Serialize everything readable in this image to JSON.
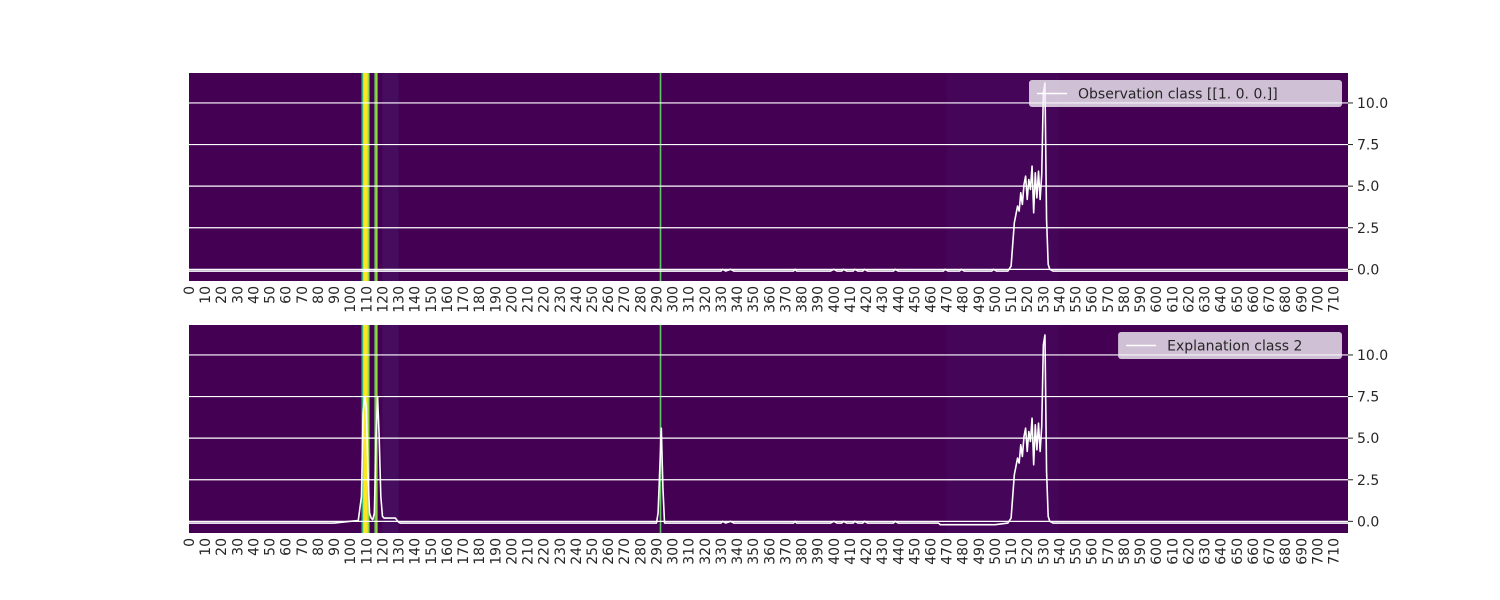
{
  "chart_data": [
    {
      "type": "line",
      "title": "",
      "xlabel": "",
      "ylabel": "",
      "xlim": [
        0,
        719
      ],
      "ylim": [
        -0.7,
        11.8
      ],
      "x_ticks": [
        0,
        10,
        20,
        30,
        40,
        50,
        60,
        70,
        80,
        90,
        100,
        110,
        120,
        130,
        140,
        150,
        160,
        170,
        180,
        190,
        200,
        210,
        220,
        230,
        240,
        250,
        260,
        270,
        280,
        290,
        300,
        310,
        320,
        330,
        340,
        350,
        360,
        370,
        380,
        390,
        400,
        410,
        420,
        430,
        440,
        450,
        460,
        470,
        480,
        490,
        500,
        510,
        520,
        530,
        540,
        550,
        560,
        570,
        580,
        590,
        600,
        610,
        620,
        630,
        640,
        650,
        660,
        670,
        680,
        690,
        700,
        710
      ],
      "y_ticks": [
        0.0,
        2.5,
        5.0,
        7.5,
        10.0
      ],
      "y_tick_labels": [
        "0.0",
        "2.5",
        "5.0",
        "7.5",
        "10.0"
      ],
      "y_axis_side": "right",
      "grid": true,
      "background": "heatmap of explanation relevance (viridis)",
      "legend_position": "top-right",
      "series": [
        {
          "name": "Observation class [[1. 0. 0.]]",
          "color": "#ffffff",
          "points": [
            [
              0,
              -0.1
            ],
            [
              100,
              -0.1
            ],
            [
              200,
              -0.1
            ],
            [
              300,
              -0.1
            ],
            [
              330,
              -0.1
            ],
            [
              331,
              0
            ],
            [
              333,
              -0.1
            ],
            [
              336,
              0
            ],
            [
              338,
              -0.1
            ],
            [
              375,
              -0.1
            ],
            [
              376,
              0
            ],
            [
              377,
              -0.1
            ],
            [
              398,
              -0.1
            ],
            [
              400,
              0
            ],
            [
              402,
              -0.1
            ],
            [
              405,
              -0.1
            ],
            [
              406,
              0
            ],
            [
              408,
              -0.1
            ],
            [
              412,
              -0.1
            ],
            [
              413,
              0
            ],
            [
              415,
              -0.1
            ],
            [
              418,
              -0.1
            ],
            [
              419,
              0
            ],
            [
              421,
              -0.1
            ],
            [
              437,
              -0.1
            ],
            [
              438,
              0
            ],
            [
              440,
              -0.1
            ],
            [
              468,
              -0.1
            ],
            [
              469,
              0
            ],
            [
              471,
              -0.1
            ],
            [
              478,
              -0.1
            ],
            [
              479,
              0
            ],
            [
              481,
              -0.1
            ],
            [
              498,
              -0.1
            ],
            [
              499,
              0
            ],
            [
              501,
              -0.1
            ],
            [
              508,
              -0.1
            ],
            [
              510,
              0.2
            ],
            [
              512,
              2.8
            ],
            [
              514,
              3.8
            ],
            [
              515,
              3.5
            ],
            [
              516,
              4.6
            ],
            [
              517,
              3.9
            ],
            [
              518,
              5.1
            ],
            [
              519,
              5.6
            ],
            [
              520,
              4.2
            ],
            [
              521,
              5.4
            ],
            [
              522,
              4.8
            ],
            [
              523,
              6.2
            ],
            [
              524,
              3.4
            ],
            [
              525,
              5.8
            ],
            [
              526,
              4.3
            ],
            [
              527,
              5.9
            ],
            [
              528,
              4.2
            ],
            [
              529,
              5.7
            ],
            [
              530,
              10.6
            ],
            [
              531,
              11.2
            ],
            [
              532,
              3.0
            ],
            [
              533,
              0.3
            ],
            [
              534,
              0
            ],
            [
              536,
              -0.1
            ],
            [
              540,
              -0.1
            ],
            [
              719,
              -0.1
            ]
          ]
        }
      ]
    },
    {
      "type": "line",
      "title": "",
      "xlabel": "",
      "ylabel": "",
      "xlim": [
        0,
        719
      ],
      "ylim": [
        -0.7,
        11.8
      ],
      "x_ticks": [
        0,
        10,
        20,
        30,
        40,
        50,
        60,
        70,
        80,
        90,
        100,
        110,
        120,
        130,
        140,
        150,
        160,
        170,
        180,
        190,
        200,
        210,
        220,
        230,
        240,
        250,
        260,
        270,
        280,
        290,
        300,
        310,
        320,
        330,
        340,
        350,
        360,
        370,
        380,
        390,
        400,
        410,
        420,
        430,
        440,
        450,
        460,
        470,
        480,
        490,
        500,
        510,
        520,
        530,
        540,
        550,
        560,
        570,
        580,
        590,
        600,
        610,
        620,
        630,
        640,
        650,
        660,
        670,
        680,
        690,
        700,
        710
      ],
      "y_ticks": [
        0.0,
        2.5,
        5.0,
        7.5,
        10.0
      ],
      "y_tick_labels": [
        "0.0",
        "2.5",
        "5.0",
        "7.5",
        "10.0"
      ],
      "y_axis_side": "right",
      "grid": true,
      "background": "heatmap of explanation relevance (viridis)",
      "legend_position": "top-right",
      "series": [
        {
          "name": "Explanation class 2",
          "color": "#ffffff",
          "points": [
            [
              0,
              -0.1
            ],
            [
              90,
              -0.1
            ],
            [
              100,
              0
            ],
            [
              105,
              0.05
            ],
            [
              107,
              1.5
            ],
            [
              108,
              6.5
            ],
            [
              109,
              7.5
            ],
            [
              110,
              6.8
            ],
            [
              111,
              3.0
            ],
            [
              112,
              0.5
            ],
            [
              113,
              0.2
            ],
            [
              114,
              0.1
            ],
            [
              115,
              0.5
            ],
            [
              116,
              5.0
            ],
            [
              117,
              7.5
            ],
            [
              118,
              5.0
            ],
            [
              119,
              1.5
            ],
            [
              120,
              0.3
            ],
            [
              121,
              0.2
            ],
            [
              128,
              0.2
            ],
            [
              130,
              -0.05
            ],
            [
              131,
              -0.1
            ],
            [
              290,
              -0.1
            ],
            [
              291,
              0.5
            ],
            [
              292,
              3.0
            ],
            [
              293,
              5.6
            ],
            [
              294,
              2.0
            ],
            [
              295,
              -0.1
            ],
            [
              330,
              -0.1
            ],
            [
              331,
              0
            ],
            [
              333,
              -0.1
            ],
            [
              336,
              0
            ],
            [
              338,
              -0.1
            ],
            [
              375,
              -0.1
            ],
            [
              376,
              0
            ],
            [
              377,
              -0.1
            ],
            [
              398,
              -0.1
            ],
            [
              400,
              0
            ],
            [
              402,
              -0.1
            ],
            [
              405,
              -0.1
            ],
            [
              406,
              0
            ],
            [
              408,
              -0.1
            ],
            [
              412,
              -0.1
            ],
            [
              413,
              0
            ],
            [
              415,
              -0.1
            ],
            [
              418,
              -0.1
            ],
            [
              419,
              0
            ],
            [
              421,
              -0.1
            ],
            [
              437,
              -0.1
            ],
            [
              438,
              0
            ],
            [
              440,
              -0.1
            ],
            [
              465,
              -0.1
            ],
            [
              466,
              -0.2
            ],
            [
              500,
              -0.2
            ],
            [
              508,
              -0.1
            ],
            [
              510,
              0.2
            ],
            [
              512,
              2.8
            ],
            [
              514,
              3.8
            ],
            [
              515,
              3.5
            ],
            [
              516,
              4.6
            ],
            [
              517,
              3.9
            ],
            [
              518,
              5.1
            ],
            [
              519,
              5.6
            ],
            [
              520,
              4.2
            ],
            [
              521,
              5.4
            ],
            [
              522,
              4.8
            ],
            [
              523,
              6.2
            ],
            [
              524,
              3.4
            ],
            [
              525,
              5.8
            ],
            [
              526,
              4.3
            ],
            [
              527,
              5.9
            ],
            [
              528,
              4.2
            ],
            [
              529,
              5.7
            ],
            [
              530,
              10.6
            ],
            [
              531,
              11.2
            ],
            [
              532,
              3.0
            ],
            [
              533,
              0.3
            ],
            [
              534,
              0
            ],
            [
              536,
              -0.1
            ],
            [
              540,
              -0.1
            ],
            [
              590,
              -0.1
            ],
            [
              719,
              -0.1
            ]
          ]
        }
      ]
    }
  ]
}
